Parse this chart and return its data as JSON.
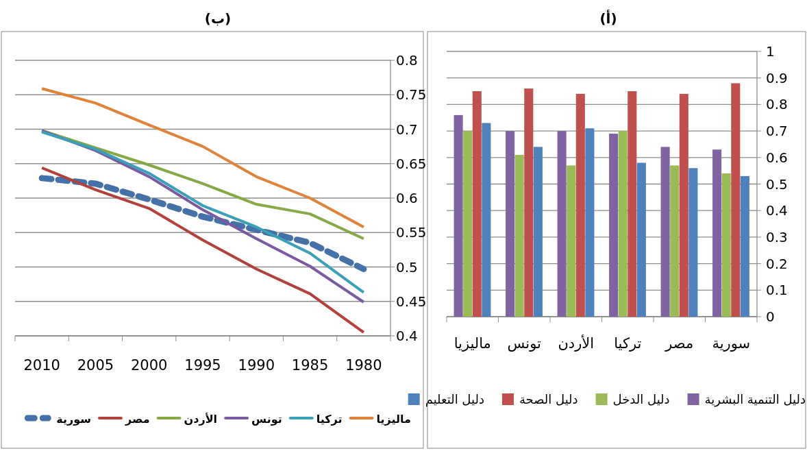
{
  "chart_data": [
    {
      "type": "bar",
      "title": "(أ)",
      "categories": [
        "ماليزيا",
        "تونس",
        "الأردن",
        "تركيا",
        "مصر",
        "سورية"
      ],
      "series": [
        {
          "name": "دليل التنمية البشرية",
          "color": "#8064a2",
          "values": [
            0.76,
            0.7,
            0.7,
            0.69,
            0.64,
            0.63
          ]
        },
        {
          "name": "دليل الدخل",
          "color": "#9bbb59",
          "values": [
            0.7,
            0.61,
            0.57,
            0.7,
            0.57,
            0.54
          ]
        },
        {
          "name": "دليل الصحة",
          "color": "#c0504d",
          "values": [
            0.85,
            0.86,
            0.84,
            0.85,
            0.84,
            0.88
          ]
        },
        {
          "name": "دليل التعليم",
          "color": "#4f81bd",
          "values": [
            0.73,
            0.64,
            0.71,
            0.58,
            0.56,
            0.53
          ]
        }
      ],
      "ylim": [
        0,
        1
      ],
      "yticks": [
        0,
        0.1,
        0.2,
        0.3,
        0.4,
        0.5,
        0.6,
        0.7,
        0.8,
        0.9,
        1
      ],
      "grid": "y",
      "legend": "bottom"
    },
    {
      "type": "line",
      "title": "(ب)",
      "categories": [
        "2010",
        "2005",
        "2000",
        "1995",
        "1990",
        "1985",
        "1980"
      ],
      "series": [
        {
          "name": "ماليزيا",
          "color": "#e0823a",
          "line_style": "solid",
          "values": [
            0.759,
            0.738,
            0.706,
            0.675,
            0.631,
            0.6,
            0.558
          ]
        },
        {
          "name": "تركيا",
          "color": "#3aa0b8",
          "line_style": "solid",
          "values": [
            0.696,
            0.671,
            0.636,
            0.589,
            0.558,
            0.52,
            0.463
          ]
        },
        {
          "name": "تونس",
          "color": "#7a5aa0",
          "line_style": "solid",
          "values": [
            0.698,
            0.669,
            0.631,
            0.583,
            0.541,
            0.501,
            0.449
          ]
        },
        {
          "name": "الأردن",
          "color": "#86a847",
          "line_style": "solid",
          "values": [
            0.698,
            0.673,
            0.648,
            0.621,
            0.591,
            0.577,
            0.541
          ]
        },
        {
          "name": "مصر",
          "color": "#b2403c",
          "line_style": "solid",
          "values": [
            0.644,
            0.612,
            0.585,
            0.539,
            0.497,
            0.461,
            0.405
          ]
        },
        {
          "name": "سورية",
          "color": "#4472a8",
          "line_style": "dashed",
          "values": [
            0.629,
            0.621,
            0.598,
            0.573,
            0.554,
            0.535,
            0.497
          ]
        }
      ],
      "ylim": [
        0.4,
        0.8
      ],
      "yticks": [
        0.4,
        0.45,
        0.5,
        0.55,
        0.6,
        0.65,
        0.7,
        0.75,
        0.8
      ],
      "grid": "y",
      "legend": "bottom",
      "marker": "none"
    }
  ]
}
